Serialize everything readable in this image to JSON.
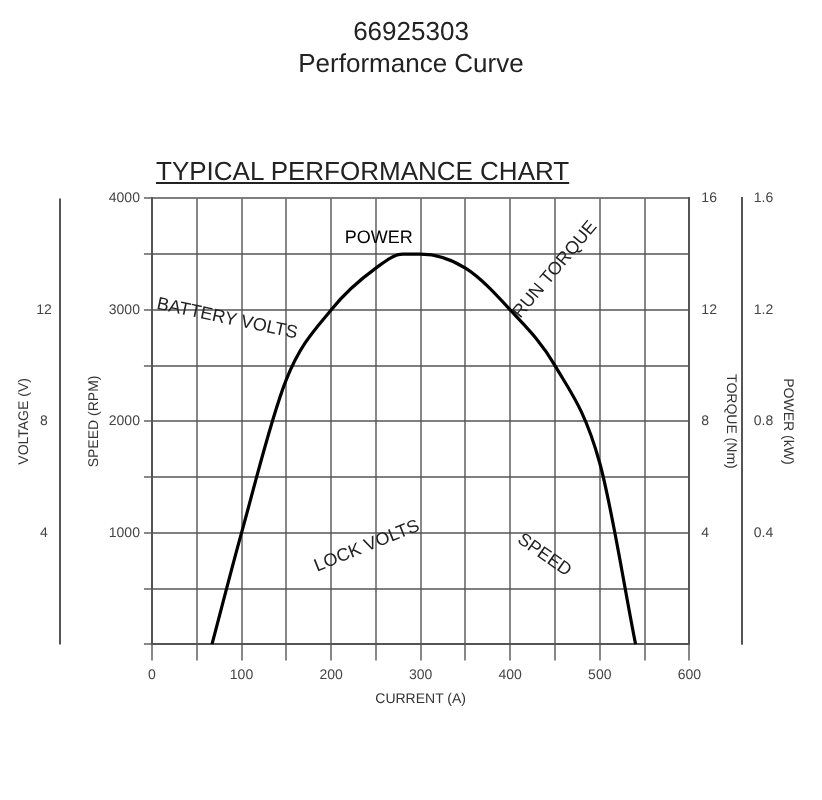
{
  "chart_data": {
    "type": "line",
    "title": "66925303\nPerformance Curve",
    "subtitle": "TYPICAL PERFORMANCE CHART",
    "xlabel": "CURRENT (A)",
    "ylabel": "SPEED (RPM)",
    "y2label": "POWER (kW)",
    "y3label": "TORQUE (Nm)",
    "series": [
      {
        "name": "POWER",
        "color": "#000000",
        "axis": "y2",
        "x": [
          67,
          100,
          150,
          200,
          250,
          280,
          300,
          350,
          400,
          450,
          500,
          540
        ],
        "values": [
          0,
          0.4,
          0.95,
          1.2,
          1.35,
          1.4,
          1.4,
          1.35,
          1.2,
          1.0,
          0.65,
          0
        ]
      }
    ],
    "xlim": [
      0,
      600
    ],
    "xticks": [
      0,
      {
        "value": 50,
        "label": null
      },
      100,
      {
        "value": 150,
        "label": null
      },
      200,
      {
        "value": 250,
        "label": null
      },
      300,
      {
        "value": 350,
        "label": null
      },
      400,
      {
        "value": 450,
        "label": null
      },
      500,
      {
        "value": 550,
        "label": null
      },
      600
    ],
    "ylim": [
      0,
      4000
    ],
    "yticks": [
      {
        "value": 0,
        "label": null
      },
      {
        "value": 500,
        "label": null
      },
      1000,
      {
        "value": 1500,
        "label": null
      },
      2000,
      {
        "value": 2500,
        "label": null
      },
      3000,
      {
        "value": 3500,
        "label": null
      },
      4000
    ],
    "y2lim": [
      0,
      1.6
    ],
    "y2ticks": [
      0.4,
      0.8,
      1.2,
      1.6
    ],
    "y3lim": [
      0,
      16
    ],
    "y3ticks": [
      4,
      8,
      12,
      16
    ],
    "annotations": [
      "BATTERY VOLTS",
      "RUN TORQUE",
      "LOCK VOLTS",
      "SPEED",
      "VOLTAGE (V)",
      "12",
      "8",
      "4"
    ],
    "grid": true,
    "legend": false,
    "marker": "none",
    "line_style": "solid"
  }
}
